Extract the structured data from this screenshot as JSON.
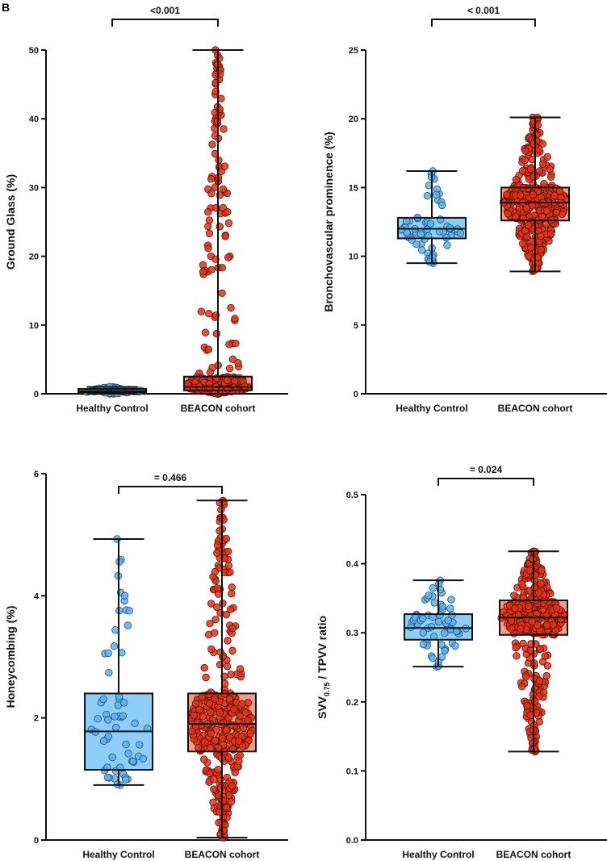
{
  "panel_label": "B",
  "chart_data": [
    {
      "type": "box-scatter",
      "ylabel": "Ground Glass (%)",
      "ylim": [
        0,
        50
      ],
      "yticks": [
        "0",
        "10",
        "20",
        "30",
        "40",
        "50"
      ],
      "p_value": "<0.001",
      "categories": [
        "Healthy Control",
        "BEACON cohort"
      ],
      "series": [
        {
          "name": "Healthy Control",
          "n": 60,
          "min": 0.0,
          "q1": 0.2,
          "median": 0.4,
          "q3": 0.7,
          "max": 1.0
        },
        {
          "name": "BEACON cohort",
          "n": 400,
          "min": 0.0,
          "q1": 0.5,
          "median": 1.0,
          "q3": 2.5,
          "max": 50.0
        }
      ]
    },
    {
      "type": "box-scatter",
      "ylabel": "Bronchovascular prominence (%)",
      "ylim": [
        0,
        25
      ],
      "yticks": [
        "0",
        "5",
        "10",
        "15",
        "20",
        "25"
      ],
      "p_value": "< 0.001",
      "categories": [
        "Healthy Control",
        "BEACON cohort"
      ],
      "series": [
        {
          "name": "Healthy Control",
          "n": 60,
          "min": 9.5,
          "q1": 11.3,
          "median": 12.0,
          "q3": 12.8,
          "max": 16.2
        },
        {
          "name": "BEACON cohort",
          "n": 400,
          "min": 8.9,
          "q1": 12.6,
          "median": 13.9,
          "q3": 15.0,
          "max": 20.1
        }
      ]
    },
    {
      "type": "box-scatter",
      "ylabel": "Honeycombing (%)",
      "ylim": [
        0,
        6
      ],
      "yticks": [
        "0",
        "2",
        "4",
        "6"
      ],
      "p_value": "= 0.466",
      "categories": [
        "Healthy Control",
        "BEACON cohort"
      ],
      "series": [
        {
          "name": "Healthy Control",
          "n": 60,
          "min": 0.9,
          "q1": 1.15,
          "median": 1.78,
          "q3": 2.4,
          "max": 4.93
        },
        {
          "name": "BEACON cohort",
          "n": 400,
          "min": 0.04,
          "q1": 1.45,
          "median": 1.9,
          "q3": 2.4,
          "max": 5.56
        }
      ]
    },
    {
      "type": "box-scatter",
      "ylabel": "SVV",
      "ylabel_sub": "0.75",
      "ylabel_rest": " / TPVV ratio",
      "ylim": [
        0,
        0.5
      ],
      "yticks": [
        "0.0",
        "0.1",
        "0.2",
        "0.3",
        "0.4",
        "0.5"
      ],
      "p_value": "= 0.024",
      "categories": [
        "Healthy Control",
        "BEACON cohort"
      ],
      "series": [
        {
          "name": "Healthy Control",
          "n": 60,
          "min": 0.251,
          "q1": 0.29,
          "median": 0.307,
          "q3": 0.327,
          "max": 0.376
        },
        {
          "name": "BEACON cohort",
          "n": 400,
          "min": 0.128,
          "q1": 0.297,
          "median": 0.322,
          "q3": 0.347,
          "max": 0.418
        }
      ]
    }
  ],
  "colors": {
    "hc_box": "#8ecdf7",
    "hc_point": "#5cb1ec",
    "hc_stroke": "#1f4f7a",
    "bc_box": "#f59a84",
    "bc_point": "#e2321b",
    "bc_stroke": "#5a1206"
  }
}
